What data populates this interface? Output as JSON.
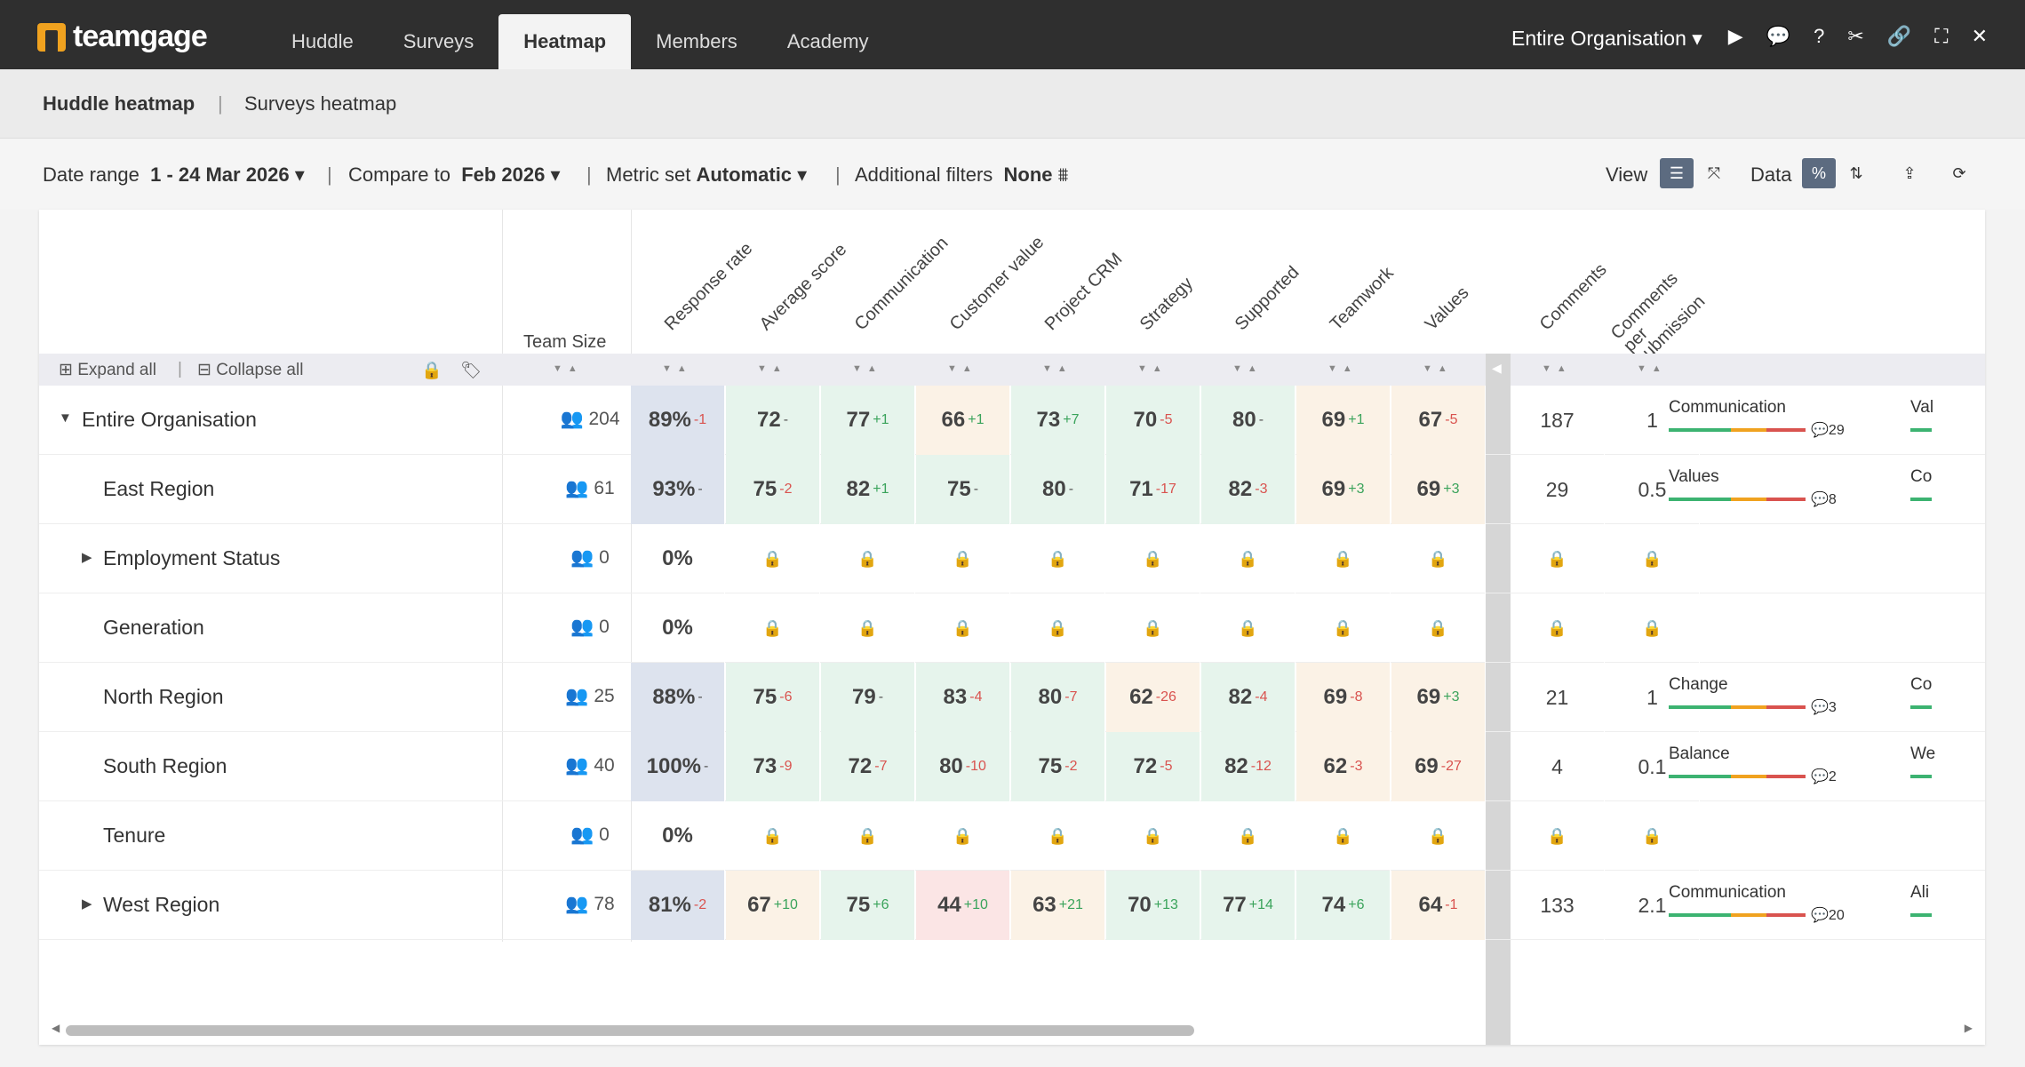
{
  "app": {
    "name": "teamgage",
    "tabs": [
      "Huddle",
      "Surveys",
      "Heatmap",
      "Members",
      "Academy"
    ],
    "active_tab": "Heatmap",
    "org_select": "Entire Organisation"
  },
  "subnav": {
    "items": [
      "Huddle heatmap",
      "Surveys heatmap"
    ],
    "active": "Huddle heatmap"
  },
  "filters": {
    "date_label": "Date range",
    "date_value": "1 - 24 Mar 2026",
    "compare_label": "Compare to",
    "compare_value": "Feb 2026",
    "metric_label": "Metric set",
    "metric_value": "Automatic",
    "additional_label": "Additional filters",
    "additional_value": "None",
    "view_label": "View",
    "data_label": "Data"
  },
  "table": {
    "expand_all": "Expand all",
    "collapse_all": "Collapse all",
    "team_size_header": "Team Size",
    "columns": [
      "Response rate",
      "Average score",
      "Communication",
      "Customer value",
      "Project CRM",
      "Strategy",
      "Supported",
      "Teamwork",
      "Values"
    ],
    "right_columns": [
      "Comments",
      "Comments per submission"
    ],
    "rows": [
      {
        "name": "Entire Organisation",
        "expander": "down",
        "indent": 0,
        "size": "204",
        "cells": [
          [
            "89%",
            "-1",
            "b"
          ],
          [
            "72",
            "-",
            "g"
          ],
          [
            "77",
            "+1",
            "g"
          ],
          [
            "66",
            "+1",
            "o"
          ],
          [
            "73",
            "+7",
            "g"
          ],
          [
            "70",
            "-5",
            "g"
          ],
          [
            "80",
            "-",
            "g"
          ],
          [
            "69",
            "+1",
            "o"
          ],
          [
            "67",
            "-5",
            "o"
          ]
        ],
        "comments": "187",
        "per": "1",
        "theme": "Communication",
        "theme_count": "29",
        "cut": "Val"
      },
      {
        "name": "East Region",
        "expander": "",
        "indent": 1,
        "size": "61",
        "cells": [
          [
            "93%",
            "-",
            "b"
          ],
          [
            "75",
            "-2",
            "g"
          ],
          [
            "82",
            "+1",
            "g"
          ],
          [
            "75",
            "-",
            "g"
          ],
          [
            "80",
            "-",
            "g"
          ],
          [
            "71",
            "-17",
            "g"
          ],
          [
            "82",
            "-3",
            "g"
          ],
          [
            "69",
            "+3",
            "o"
          ],
          [
            "69",
            "+3",
            "o"
          ]
        ],
        "comments": "29",
        "per": "0.5",
        "theme": "Values",
        "theme_count": "8",
        "cut": "Co"
      },
      {
        "name": "Employment Status",
        "expander": "right",
        "indent": 1,
        "size": "0",
        "locked": true,
        "rate": "0%"
      },
      {
        "name": "Generation",
        "expander": "",
        "indent": 1,
        "size": "0",
        "locked": true,
        "rate": "0%"
      },
      {
        "name": "North Region",
        "expander": "",
        "indent": 1,
        "size": "25",
        "cells": [
          [
            "88%",
            "-",
            "b"
          ],
          [
            "75",
            "-6",
            "g"
          ],
          [
            "79",
            "-",
            "g"
          ],
          [
            "83",
            "-4",
            "g"
          ],
          [
            "80",
            "-7",
            "g"
          ],
          [
            "62",
            "-26",
            "o"
          ],
          [
            "82",
            "-4",
            "g"
          ],
          [
            "69",
            "-8",
            "o"
          ],
          [
            "69",
            "+3",
            "o"
          ]
        ],
        "comments": "21",
        "per": "1",
        "theme": "Change",
        "theme_count": "3",
        "cut": "Co"
      },
      {
        "name": "South Region",
        "expander": "",
        "indent": 1,
        "size": "40",
        "cells": [
          [
            "100%",
            "-",
            "b"
          ],
          [
            "73",
            "-9",
            "g"
          ],
          [
            "72",
            "-7",
            "g"
          ],
          [
            "80",
            "-10",
            "g"
          ],
          [
            "75",
            "-2",
            "g"
          ],
          [
            "72",
            "-5",
            "g"
          ],
          [
            "82",
            "-12",
            "g"
          ],
          [
            "62",
            "-3",
            "o"
          ],
          [
            "69",
            "-27",
            "o"
          ]
        ],
        "comments": "4",
        "per": "0.1",
        "theme": "Balance",
        "theme_count": "2",
        "cut": "We"
      },
      {
        "name": "Tenure",
        "expander": "",
        "indent": 1,
        "size": "0",
        "locked": true,
        "rate": "0%"
      },
      {
        "name": "West Region",
        "expander": "right",
        "indent": 1,
        "size": "78",
        "cells": [
          [
            "81%",
            "-2",
            "b"
          ],
          [
            "67",
            "+10",
            "o"
          ],
          [
            "75",
            "+6",
            "g"
          ],
          [
            "44",
            "+10",
            "r"
          ],
          [
            "63",
            "+21",
            "o"
          ],
          [
            "70",
            "+13",
            "g"
          ],
          [
            "77",
            "+14",
            "g"
          ],
          [
            "74",
            "+6",
            "g"
          ],
          [
            "64",
            "-1",
            "o"
          ]
        ],
        "comments": "133",
        "per": "2.1",
        "theme": "Communication",
        "theme_count": "20",
        "cut": "Ali"
      }
    ]
  }
}
